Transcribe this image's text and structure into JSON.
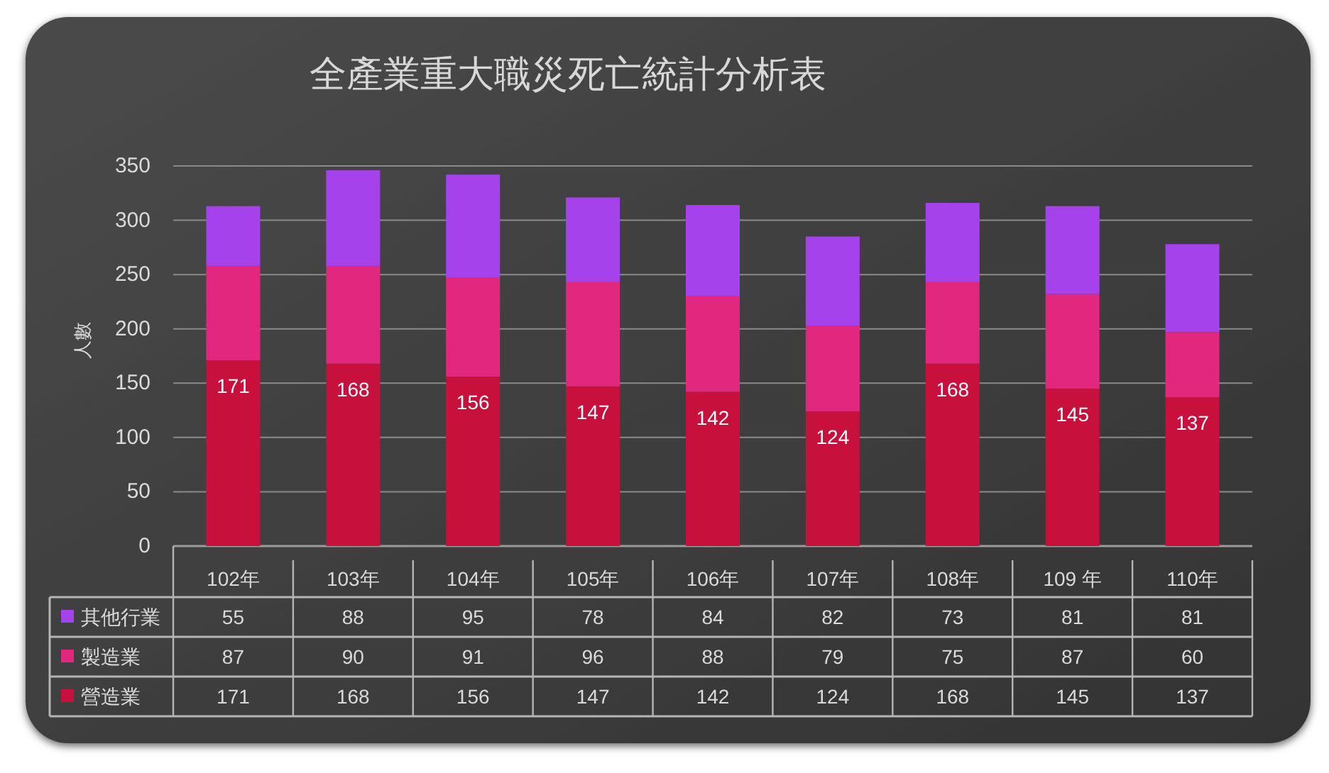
{
  "chart_data": {
    "type": "bar",
    "stacked": true,
    "title": "全產業重大職災死亡統計分析表",
    "ylabel": "人數",
    "categories": [
      "102年",
      "103年",
      "104年",
      "105年",
      "106年",
      "107年",
      "108年",
      "109 年",
      "110年"
    ],
    "series": [
      {
        "name": "營造業",
        "color": "#c8103c",
        "values": [
          171,
          168,
          156,
          147,
          142,
          124,
          168,
          145,
          137
        ]
      },
      {
        "name": "製造業",
        "color": "#e2287e",
        "values": [
          87,
          90,
          91,
          96,
          88,
          79,
          75,
          87,
          60
        ]
      },
      {
        "name": "其他行業",
        "color": "#a642ec",
        "values": [
          55,
          88,
          95,
          78,
          84,
          82,
          73,
          81,
          81
        ]
      }
    ],
    "annotations": [
      {
        "text": "171",
        "x": "102年",
        "y": 171
      },
      {
        "text": "168",
        "x": "103年",
        "y": 168
      },
      {
        "text": "156",
        "x": "104年",
        "y": 156
      },
      {
        "text": "147",
        "x": "105年",
        "y": 147
      },
      {
        "text": "142",
        "x": "106年",
        "y": 142
      },
      {
        "text": "124",
        "x": "107年",
        "y": 124
      },
      {
        "text": "168",
        "x": "108年",
        "y": 168
      },
      {
        "text": "145",
        "x": "109 年",
        "y": 145
      },
      {
        "text": "137",
        "x": "110年",
        "y": 137
      }
    ],
    "ylim": [
      0,
      350
    ],
    "yticks": [
      0,
      50,
      100,
      150,
      200,
      250,
      300,
      350
    ],
    "grid": "y",
    "data_labels": true,
    "legend": "bottom"
  }
}
